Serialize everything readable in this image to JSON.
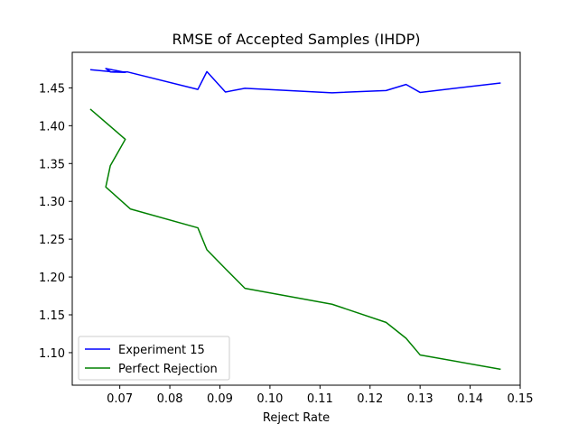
{
  "chart_data": {
    "type": "line",
    "title": "RMSE of Accepted Samples (IHDP)",
    "xlabel": "Reject Rate",
    "ylabel": "",
    "xlim": [
      0.0605,
      0.15
    ],
    "ylim": [
      1.057,
      1.497
    ],
    "xticks": [
      0.07,
      0.08,
      0.09,
      0.1,
      0.11,
      0.12,
      0.13,
      0.14,
      0.15
    ],
    "xtick_labels": [
      "0.07",
      "0.08",
      "0.09",
      "0.10",
      "0.11",
      "0.12",
      "0.13",
      "0.14",
      "0.15"
    ],
    "yticks": [
      1.1,
      1.15,
      1.2,
      1.25,
      1.3,
      1.35,
      1.4,
      1.45
    ],
    "ytick_labels": [
      "1.10",
      "1.15",
      "1.20",
      "1.25",
      "1.30",
      "1.35",
      "1.40",
      "1.45"
    ],
    "grid": false,
    "legend_position": "lower-left",
    "series": [
      {
        "name": "Experiment 15",
        "color": "#0000ff",
        "x": [
          0.0641,
          0.0681,
          0.0672,
          0.0711,
          0.0681,
          0.0716,
          0.0856,
          0.0874,
          0.0911,
          0.095,
          0.1124,
          0.1232,
          0.1272,
          0.13,
          0.1461
        ],
        "y": [
          1.474,
          1.4715,
          1.4755,
          1.4705,
          1.471,
          1.471,
          1.448,
          1.4715,
          1.4445,
          1.4495,
          1.4435,
          1.4465,
          1.4545,
          1.444,
          1.4565
        ]
      },
      {
        "name": "Perfect Rejection",
        "color": "#008000",
        "x": [
          0.0641,
          0.0711,
          0.0681,
          0.0672,
          0.0721,
          0.0856,
          0.0874,
          0.0911,
          0.095,
          0.1124,
          0.1232,
          0.1272,
          0.13,
          0.1461
        ],
        "y": [
          1.422,
          1.382,
          1.347,
          1.319,
          1.29,
          1.265,
          1.236,
          1.211,
          1.185,
          1.164,
          1.14,
          1.119,
          1.097,
          1.078
        ]
      }
    ]
  }
}
